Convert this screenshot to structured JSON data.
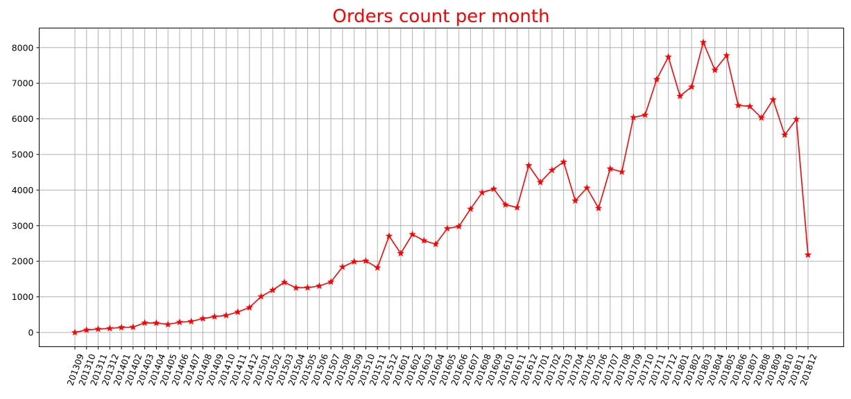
{
  "chart_data": {
    "type": "line",
    "title": "Orders count per month",
    "xlabel": "",
    "ylabel": "",
    "grid": true,
    "ylim": [
      -400,
      8550
    ],
    "yticks": [
      0,
      1000,
      2000,
      3000,
      4000,
      5000,
      6000,
      7000,
      8000
    ],
    "categories": [
      "201309",
      "201310",
      "201311",
      "201312",
      "201401",
      "201402",
      "201403",
      "201404",
      "201405",
      "201406",
      "201407",
      "201408",
      "201409",
      "201410",
      "201411",
      "201412",
      "201501",
      "201502",
      "201503",
      "201504",
      "201505",
      "201506",
      "201507",
      "201508",
      "201509",
      "201510",
      "201511",
      "201512",
      "201601",
      "201602",
      "201603",
      "201604",
      "201605",
      "201606",
      "201607",
      "201608",
      "201609",
      "201610",
      "201611",
      "201612",
      "201701",
      "201702",
      "201703",
      "201704",
      "201705",
      "201706",
      "201707",
      "201708",
      "201709",
      "201710",
      "201711",
      "201712",
      "201801",
      "201802",
      "201803",
      "201804",
      "201805",
      "201806",
      "201807",
      "201808",
      "201809",
      "201810",
      "201811",
      "201812"
    ],
    "series": [
      {
        "color": "#ff0000",
        "marker": "star",
        "values": [
          0,
          70,
          95,
          115,
          140,
          150,
          270,
          265,
          225,
          290,
          310,
          390,
          445,
          480,
          575,
          700,
          1010,
          1190,
          1410,
          1255,
          1260,
          1305,
          1420,
          1840,
          1990,
          2010,
          1820,
          2710,
          2220,
          2755,
          2580,
          2480,
          2920,
          2980,
          3470,
          3930,
          4030,
          3590,
          3510,
          4690,
          4220,
          4560,
          4790,
          3700,
          4060,
          3490,
          4600,
          4510,
          6040,
          6110,
          7110,
          7740,
          6640,
          6900,
          8150,
          7370,
          7780,
          6380,
          6350,
          6030,
          6540,
          5550,
          5990,
          2180
        ]
      }
    ]
  }
}
